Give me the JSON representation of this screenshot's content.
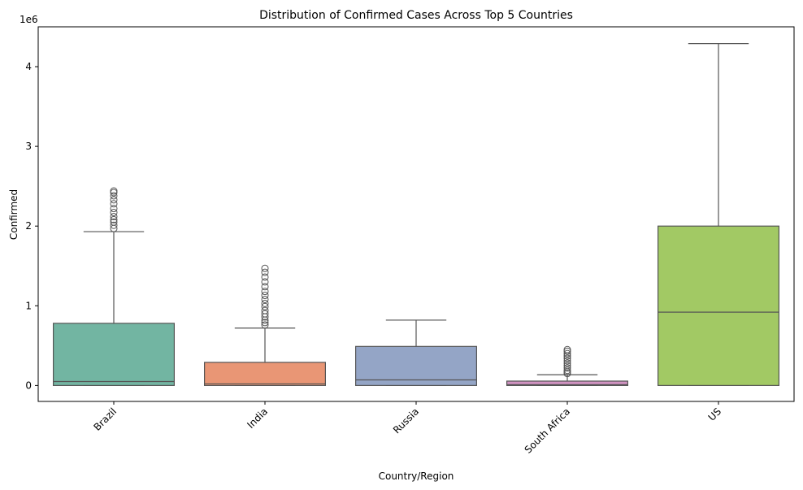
{
  "chart_data": {
    "type": "box",
    "title": "Distribution of Confirmed Cases Across Top 5 Countries",
    "xlabel": "Country/Region",
    "ylabel": "Confirmed",
    "y_offset_text": "1e6",
    "ylim": [
      -200000,
      4500000
    ],
    "yticks": [
      0,
      1000000,
      2000000,
      3000000,
      4000000
    ],
    "ytick_labels": [
      "0",
      "1",
      "2",
      "3",
      "4"
    ],
    "grid": false,
    "categories": [
      "Brazil",
      "India",
      "Russia",
      "South Africa",
      "US"
    ],
    "boxes": [
      {
        "category": "Brazil",
        "color": "#72b5a2",
        "min": 0,
        "q1": 0,
        "median": 50000,
        "q3": 780000,
        "max": 1930000,
        "outliers": [
          1970000,
          2010000,
          2050000,
          2080000,
          2120000,
          2170000,
          2220000,
          2280000,
          2330000,
          2380000,
          2420000,
          2440000
        ]
      },
      {
        "category": "India",
        "color": "#e99675",
        "min": 0,
        "q1": 0,
        "median": 20000,
        "q3": 290000,
        "max": 720000,
        "outliers": [
          760000,
          790000,
          820000,
          860000,
          900000,
          940000,
          990000,
          1030000,
          1080000,
          1130000,
          1180000,
          1240000,
          1300000,
          1360000,
          1420000,
          1470000
        ]
      },
      {
        "category": "Russia",
        "color": "#94a5c6",
        "min": 0,
        "q1": 0,
        "median": 70000,
        "q3": 490000,
        "max": 820000,
        "outliers": []
      },
      {
        "category": "South Africa",
        "color": "#d193c2",
        "min": 0,
        "q1": 0,
        "median": 10000,
        "q3": 55000,
        "max": 135000,
        "outliers": [
          150000,
          170000,
          190000,
          220000,
          250000,
          280000,
          310000,
          340000,
          370000,
          400000,
          430000,
          450000
        ]
      },
      {
        "category": "US",
        "color": "#a2c964",
        "min": 0,
        "q1": 0,
        "median": 920000,
        "q3": 2000000,
        "max": 4290000,
        "outliers": []
      }
    ]
  }
}
